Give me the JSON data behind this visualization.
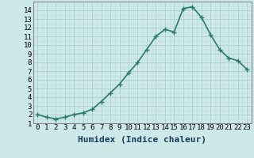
{
  "x": [
    0,
    1,
    2,
    3,
    4,
    5,
    6,
    7,
    8,
    9,
    10,
    11,
    12,
    13,
    14,
    15,
    16,
    17,
    18,
    19,
    20,
    21,
    22,
    23
  ],
  "y": [
    2.0,
    1.7,
    1.5,
    1.7,
    2.0,
    2.2,
    2.6,
    3.5,
    4.5,
    5.5,
    6.8,
    8.0,
    9.5,
    11.0,
    11.8,
    11.5,
    14.2,
    14.4,
    13.2,
    11.2,
    9.5,
    8.5,
    8.2,
    7.2
  ],
  "xlabel": "Humidex (Indice chaleur)",
  "xlim": [
    -0.5,
    23.5
  ],
  "ylim": [
    1.0,
    15.0
  ],
  "yticks": [
    1,
    2,
    3,
    4,
    5,
    6,
    7,
    8,
    9,
    10,
    11,
    12,
    13,
    14
  ],
  "xticks": [
    0,
    1,
    2,
    3,
    4,
    5,
    6,
    7,
    8,
    9,
    10,
    11,
    12,
    13,
    14,
    15,
    16,
    17,
    18,
    19,
    20,
    21,
    22,
    23
  ],
  "line_color": "#2a7a6a",
  "marker": ".",
  "marker_size": 4,
  "bg_color": "#cce8e8",
  "grid_major_color": "#aacfcf",
  "grid_minor_color": "#bcdada",
  "tick_fontsize": 6.5,
  "xlabel_fontsize": 8,
  "xlabel_color": "#1a3a5a",
  "linewidth": 1.2
}
